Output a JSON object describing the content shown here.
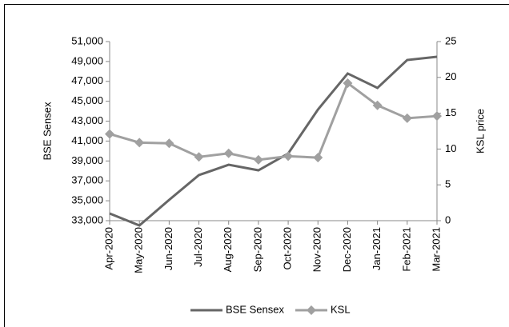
{
  "chart_data": {
    "type": "line",
    "categories": [
      "Apr-2020",
      "May-2020",
      "Jun-2020",
      "Jul-2020",
      "Aug-2020",
      "Sep-2020",
      "Oct-2020",
      "Nov-2020",
      "Dec-2020",
      "Jan-2021",
      "Feb-2021",
      "Mar-2021"
    ],
    "ylabel": "BSE Sensex",
    "y2label": "KSL price",
    "ylim": [
      33000,
      51000
    ],
    "yticks": [
      {
        "value": 33000,
        "label": "33,000"
      },
      {
        "value": 35000,
        "label": "35,000"
      },
      {
        "value": 37000,
        "label": "37,000"
      },
      {
        "value": 39000,
        "label": "39,000"
      },
      {
        "value": 41000,
        "label": "41,000"
      },
      {
        "value": 43000,
        "label": "43,000"
      },
      {
        "value": 45000,
        "label": "45,000"
      },
      {
        "value": 47000,
        "label": "47,000"
      },
      {
        "value": 49000,
        "label": "49,000"
      },
      {
        "value": 51000,
        "label": "51,000"
      }
    ],
    "y2lim": [
      0,
      25
    ],
    "y2ticks": [
      0,
      5,
      10,
      15,
      20,
      25
    ],
    "series": [
      {
        "name": "BSE Sensex",
        "color": "#666666",
        "values": [
          33720,
          32520,
          35090,
          37580,
          38620,
          38060,
          39750,
          44170,
          47790,
          46340,
          49150,
          49470
        ]
      },
      {
        "name": "KSL",
        "color": "#a0a0a0",
        "axis": "y2",
        "marker": "diamond",
        "values": [
          12.1,
          10.9,
          10.8,
          8.9,
          9.4,
          8.5,
          9.0,
          8.8,
          19.2,
          16.1,
          14.3,
          14.6
        ]
      }
    ]
  }
}
